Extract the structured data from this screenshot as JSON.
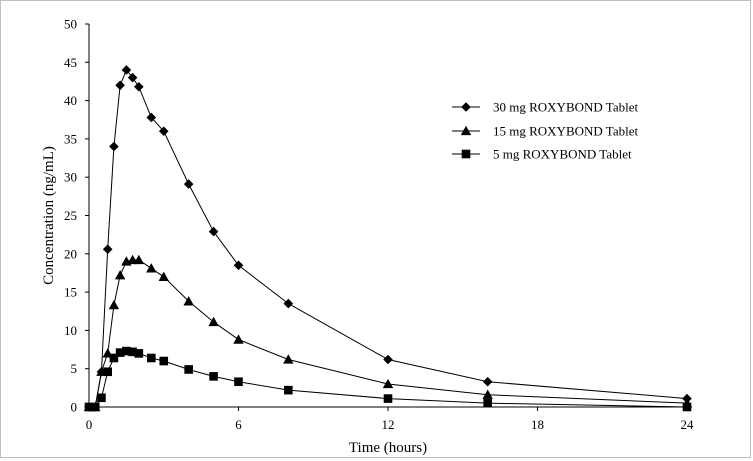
{
  "chart_data": {
    "type": "line",
    "title": "",
    "xlabel": "Time (hours)",
    "ylabel": "Concentration (ng/mL)",
    "xlim": [
      0,
      24
    ],
    "ylim": [
      0,
      50
    ],
    "xticks": [
      0,
      6,
      12,
      18,
      24
    ],
    "yticks": [
      0,
      5,
      10,
      15,
      20,
      25,
      30,
      35,
      40,
      45,
      50
    ],
    "grid": false,
    "legend_position": "right",
    "series": [
      {
        "name": "30 mg ROXYBOND Tablet",
        "marker": "diamond",
        "x": [
          0,
          0.25,
          0.5,
          0.75,
          1,
          1.25,
          1.5,
          1.75,
          2,
          2.5,
          3,
          4,
          5,
          6,
          8,
          12,
          16,
          24
        ],
        "y": [
          0,
          0,
          4.6,
          20.6,
          34,
          42,
          44,
          43,
          41.8,
          37.8,
          36,
          29.1,
          22.9,
          18.5,
          13.5,
          6.2,
          3.3,
          1.1
        ]
      },
      {
        "name": "15 mg ROXYBOND Tablet",
        "marker": "triangle",
        "x": [
          0,
          0.25,
          0.5,
          0.75,
          1,
          1.25,
          1.5,
          1.75,
          2,
          2.5,
          3,
          4,
          5,
          6,
          8,
          12,
          16,
          24
        ],
        "y": [
          0,
          0,
          4.6,
          7,
          13.3,
          17.2,
          19,
          19.2,
          19.2,
          18.1,
          17,
          13.8,
          11.1,
          8.8,
          6.2,
          3,
          1.6,
          0.5
        ]
      },
      {
        "name": "5 mg ROXYBOND Tablet",
        "marker": "square",
        "x": [
          0,
          0.25,
          0.5,
          0.75,
          1,
          1.25,
          1.5,
          1.75,
          2,
          2.5,
          3,
          4,
          5,
          6,
          8,
          12,
          16,
          24
        ],
        "y": [
          0,
          0,
          1.2,
          4.6,
          6.4,
          7.1,
          7.3,
          7.2,
          7,
          6.4,
          6,
          4.9,
          4,
          3.3,
          2.2,
          1.1,
          0.5,
          0
        ]
      }
    ]
  }
}
